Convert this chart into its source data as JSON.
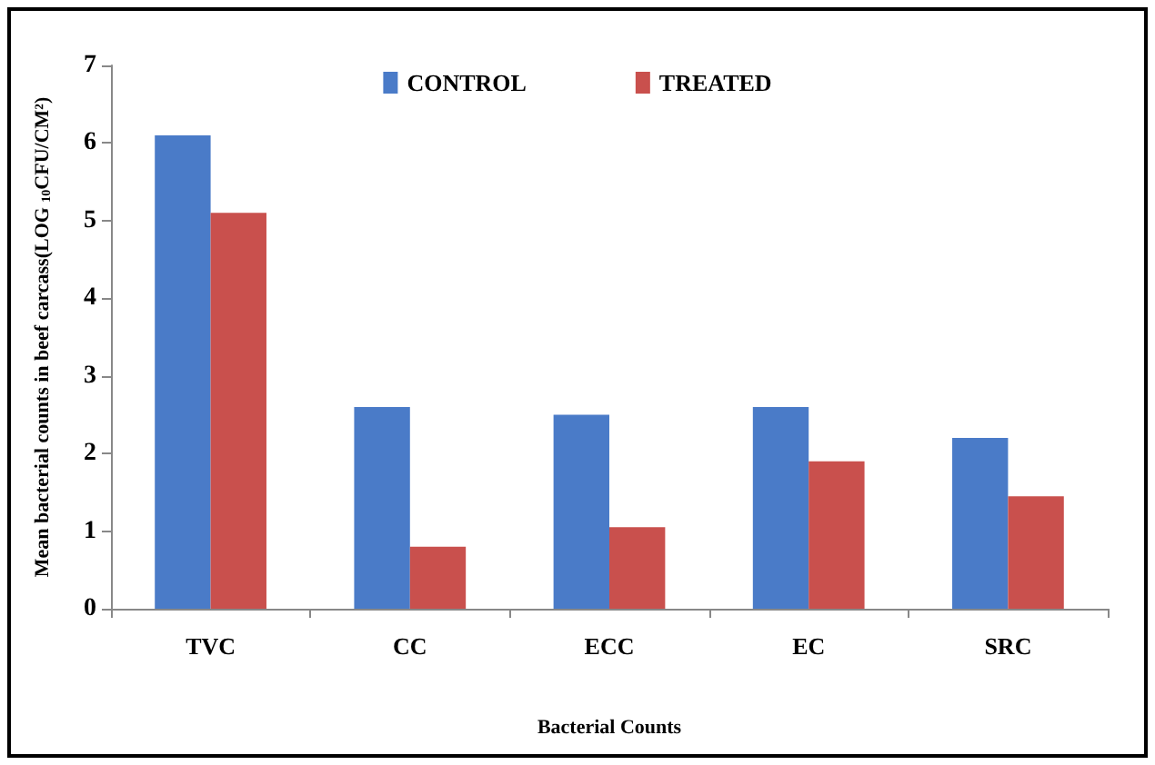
{
  "chart_data": {
    "type": "bar",
    "xlabel": "Bacterial Counts",
    "ylabel": "Mean bacterial counts in beef carcass(LOG $_{10}$CFU/CM²)",
    "categories": [
      "TVC",
      "CC",
      "ECC",
      "EC",
      "SRC"
    ],
    "series": [
      {
        "name": "CONTROL",
        "color": "#4a7bc8",
        "values": [
          6.1,
          2.6,
          2.5,
          2.6,
          2.2
        ]
      },
      {
        "name": "TREATED",
        "color": "#c9504d",
        "values": [
          5.1,
          0.8,
          1.05,
          1.9,
          1.45
        ]
      }
    ],
    "ylim": [
      0,
      7
    ],
    "yticks": [
      0,
      1,
      2,
      3,
      4,
      5,
      6,
      7
    ],
    "grid": false,
    "legend": "top"
  }
}
